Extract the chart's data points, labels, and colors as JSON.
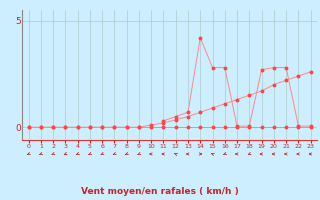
{
  "xlabel": "Vent moyen/en rafales ( km/h )",
  "bg_color": "#cceeff",
  "grid_color": "#aacccc",
  "line_color": "#ff8888",
  "marker_color": "#ff4444",
  "xlim": [
    -0.5,
    23.5
  ],
  "ylim": [
    -0.6,
    5.5
  ],
  "xticks": [
    0,
    1,
    2,
    3,
    4,
    5,
    6,
    7,
    8,
    9,
    10,
    11,
    12,
    13,
    14,
    15,
    16,
    17,
    18,
    19,
    20,
    21,
    22,
    23
  ],
  "yticks": [
    0,
    5
  ],
  "series_flat_x": [
    0,
    1,
    2,
    3,
    4,
    5,
    6,
    7,
    8,
    9,
    10,
    11,
    12,
    13,
    14,
    15,
    16,
    17,
    18,
    19,
    20,
    21,
    22,
    23
  ],
  "series_flat_y": [
    0,
    0,
    0,
    0,
    0,
    0,
    0,
    0,
    0,
    0,
    0,
    0,
    0,
    0,
    0,
    0,
    0,
    0,
    0,
    0,
    0,
    0,
    0,
    0
  ],
  "series_avg_x": [
    0,
    1,
    2,
    3,
    4,
    5,
    6,
    7,
    8,
    9,
    10,
    11,
    12,
    13,
    14,
    15,
    16,
    17,
    18,
    19,
    20,
    21,
    22,
    23
  ],
  "series_avg_y": [
    0,
    0,
    0,
    0,
    0,
    0,
    0,
    0,
    0,
    0,
    0.1,
    0.2,
    0.35,
    0.5,
    0.7,
    0.9,
    1.1,
    1.3,
    1.5,
    1.7,
    2.0,
    2.2,
    2.4,
    2.6
  ],
  "series_gust_x": [
    11,
    12,
    13,
    14,
    15,
    16,
    17,
    18,
    19,
    20,
    21,
    22,
    23
  ],
  "series_gust_y": [
    0.3,
    0.5,
    0.7,
    4.2,
    2.8,
    2.8,
    0.05,
    0.05,
    2.7,
    2.8,
    2.8,
    0.05,
    0.05
  ],
  "wind_dirs": [
    225,
    225,
    225,
    225,
    225,
    225,
    225,
    225,
    225,
    225,
    270,
    270,
    315,
    270,
    90,
    315,
    225,
    270,
    225,
    270,
    270,
    270,
    270,
    270
  ]
}
